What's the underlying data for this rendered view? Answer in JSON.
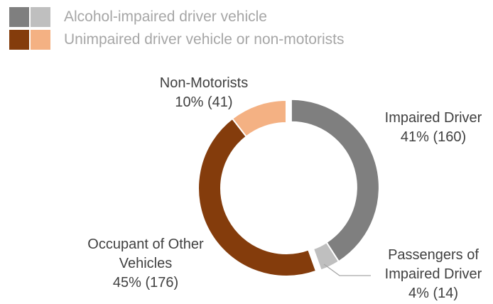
{
  "chart_data": {
    "type": "donut",
    "legend": [
      {
        "label": "Alcohol-impaired driver vehicle",
        "colors": [
          "#7f7f7f",
          "#bfbfbf"
        ]
      },
      {
        "label": "Unimpaired driver vehicle or non-motorists",
        "colors": [
          "#843c0c",
          "#f4b183"
        ]
      }
    ],
    "categories": [
      "Impaired Driver",
      "Passengers of Impaired Driver",
      "Occupant of Other Vehicles",
      "Non-Motorists"
    ],
    "values": [
      160,
      14,
      176,
      41
    ],
    "value_labels": [
      "41% (160)",
      "4% (14)",
      "45% (176)",
      "10% (41)"
    ],
    "colors": [
      "#7f7f7f",
      "#bfbfbf",
      "#843c0c",
      "#f4b183"
    ]
  }
}
